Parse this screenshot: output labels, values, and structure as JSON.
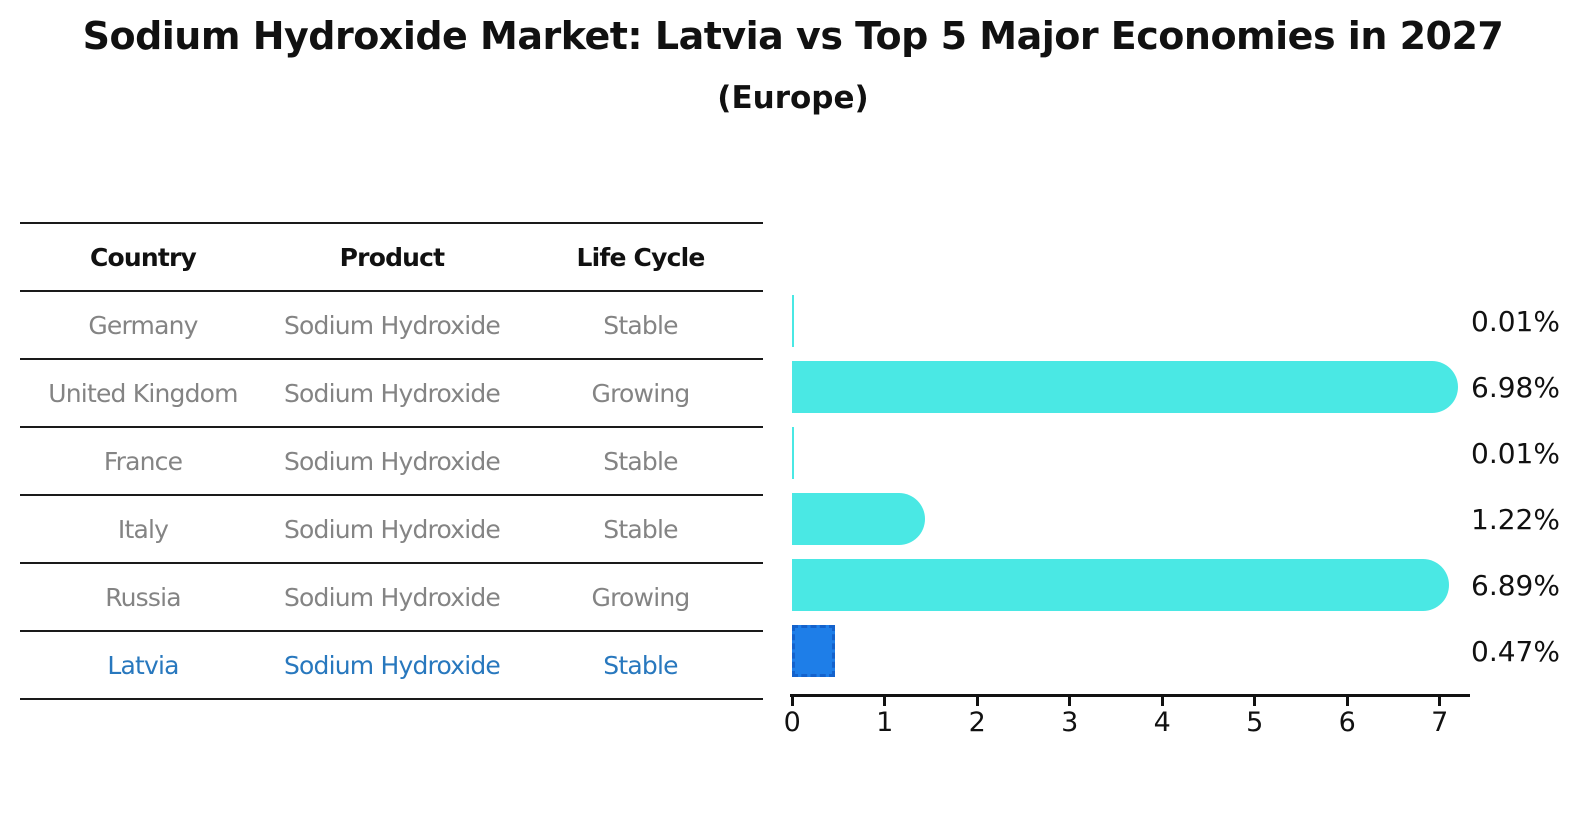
{
  "title": "Sodium Hydroxide Market: Latvia vs Top 5 Major Economies in 2027",
  "subtitle": "(Europe)",
  "table": {
    "headers": [
      "Country",
      "Product",
      "Life Cycle"
    ],
    "rows": [
      {
        "country": "Germany",
        "product": "Sodium Hydroxide",
        "life_cycle": "Stable",
        "highlight": false
      },
      {
        "country": "United Kingdom",
        "product": "Sodium Hydroxide",
        "life_cycle": "Growing",
        "highlight": false
      },
      {
        "country": "France",
        "product": "Sodium Hydroxide",
        "life_cycle": "Stable",
        "highlight": false
      },
      {
        "country": "Italy",
        "product": "Sodium Hydroxide",
        "life_cycle": "Stable",
        "highlight": false
      },
      {
        "country": "Russia",
        "product": "Sodium Hydroxide",
        "life_cycle": "Growing",
        "highlight": false
      },
      {
        "country": "Latvia",
        "product": "Sodium Hydroxide",
        "life_cycle": "Stable",
        "highlight": true
      }
    ]
  },
  "chart_data": {
    "type": "bar",
    "orientation": "horizontal",
    "title": "Sodium Hydroxide Market: Latvia vs Top 5 Major Economies in 2027",
    "subtitle": "(Europe)",
    "categories": [
      "Germany",
      "United Kingdom",
      "France",
      "Italy",
      "Russia",
      "Latvia"
    ],
    "values": [
      0.01,
      6.98,
      0.01,
      1.22,
      6.89,
      0.47
    ],
    "value_labels": [
      "0.01%",
      "6.98%",
      "0.01%",
      "1.22%",
      "6.89%",
      "0.47%"
    ],
    "xlabel": "",
    "ylabel": "",
    "xlim": [
      0,
      7.3
    ],
    "xticks": [
      0,
      1,
      2,
      3,
      4,
      5,
      6,
      7
    ],
    "grid": false,
    "legend": false,
    "highlight_index": 5
  },
  "colors": {
    "bar": "#4ae8e4",
    "highlight_bar": "#1e7ee8",
    "highlight_bar_border": "#1462cc",
    "highlight_text": "#2878be",
    "table_text": "#848484",
    "axis_text": "#111111"
  }
}
